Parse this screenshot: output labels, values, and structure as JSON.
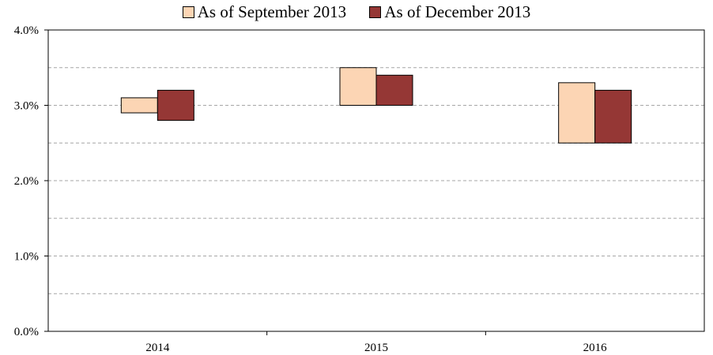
{
  "chart_data": {
    "type": "bar",
    "subtype": "floating-range",
    "categories": [
      "2014",
      "2015",
      "2016"
    ],
    "series": [
      {
        "name": "As of September 2013",
        "color": "#fcd5b4",
        "low": [
          2.9,
          3.0,
          2.5
        ],
        "high": [
          3.1,
          3.5,
          3.3
        ]
      },
      {
        "name": "As of December 2013",
        "color": "#953735",
        "low": [
          2.8,
          3.0,
          2.5
        ],
        "high": [
          3.2,
          3.4,
          3.2
        ]
      }
    ],
    "ylim": [
      0.0,
      4.0
    ],
    "y_ticks": [
      "0.0%",
      "1.0%",
      "2.0%",
      "3.0%",
      "4.0%"
    ],
    "y_tick_values": [
      0.0,
      1.0,
      2.0,
      3.0,
      4.0
    ],
    "grid": true,
    "grid_step": 0.5,
    "legend_position": "top-center"
  }
}
